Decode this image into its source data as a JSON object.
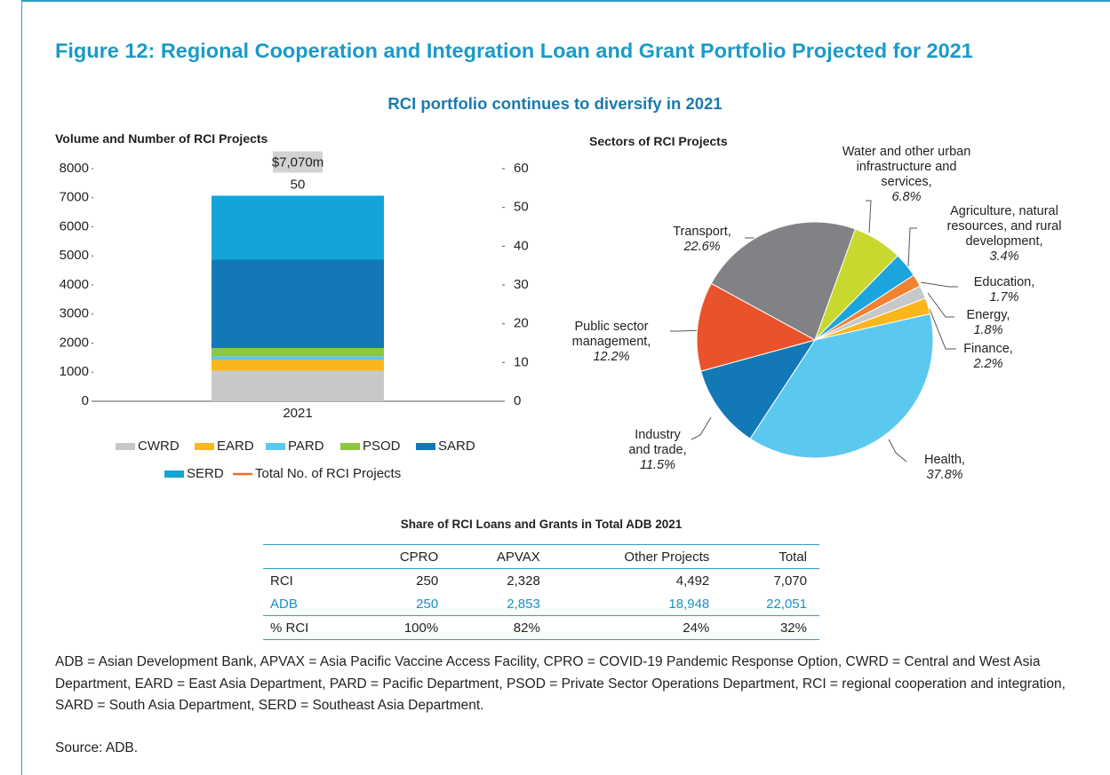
{
  "title": "Figure 12: Regional Cooperation and Integration Loan and Grant Portfolio Projected for 2021",
  "subtitle": "RCI portfolio continues to diversify in 2021",
  "chart_data": [
    {
      "type": "bar",
      "title": "Volume and Number of RCI Projects",
      "categories": [
        "2021"
      ],
      "stacked": true,
      "series": [
        {
          "name": "CWRD",
          "color": "#c7c8ca",
          "values": [
            1050
          ]
        },
        {
          "name": "EARD",
          "color": "#fbb619",
          "values": [
            370
          ]
        },
        {
          "name": "PARD",
          "color": "#5bc8ef",
          "values": [
            130
          ]
        },
        {
          "name": "PSOD",
          "color": "#8dc63f",
          "values": [
            280
          ]
        },
        {
          "name": "SARD",
          "color": "#1279b6",
          "values": [
            3040
          ]
        },
        {
          "name": "SERD",
          "color": "#13a5d8",
          "values": [
            2200
          ]
        },
        {
          "name": "Total No. of RCI Projects",
          "color": "#f26c2b",
          "axis": "y2",
          "kind": "line",
          "values": [
            50
          ]
        }
      ],
      "annotations": [
        "$7,070m"
      ],
      "ylim": [
        0,
        8000
      ],
      "yticks": [
        0,
        1000,
        2000,
        3000,
        4000,
        5000,
        6000,
        7000,
        8000
      ],
      "y2lim": [
        0,
        60
      ],
      "y2ticks": [
        0,
        10,
        20,
        30,
        40,
        50,
        60
      ]
    },
    {
      "type": "pie",
      "title": "Sectors of RCI Projects",
      "categories": [
        "Transport,",
        "Water and other urban infrastructure and services,",
        "Agriculture, natural resources, and rural development,",
        "Education,",
        "Energy,",
        "Finance,",
        "Health,",
        "Industry and trade,",
        "Public sector management,"
      ],
      "values": [
        22.6,
        6.8,
        3.4,
        1.7,
        1.8,
        2.2,
        37.8,
        11.5,
        12.2
      ],
      "value_labels": [
        "22.6%",
        "6.8%",
        "3.4%",
        "1.7%",
        "1.8%",
        "2.2%",
        "37.8%",
        "11.5%",
        "12.2%"
      ],
      "colors": [
        "#808285",
        "#c8d82f",
        "#1ba5dc",
        "#f08232",
        "#c7c8ca",
        "#fbb619",
        "#5bc8ef",
        "#1279b6",
        "#e9532b"
      ]
    }
  ],
  "table": {
    "title": "Share of RCI Loans and Grants in Total ADB 2021",
    "columns": [
      "CPRO",
      "APVAX",
      "Other Projects",
      "Total"
    ],
    "rows": [
      {
        "label": "RCI",
        "cells": [
          "250",
          "2,328",
          "4,492",
          "7,070"
        ]
      },
      {
        "label": "ADB",
        "cells": [
          "250",
          "2,853",
          "18,948",
          "22,051"
        ]
      },
      {
        "label": "% RCI",
        "cells": [
          "100%",
          "82%",
          "24%",
          "32%"
        ]
      }
    ]
  },
  "notes": "ADB = Asian Development Bank, APVAX = Asia Pacific Vaccine Access Facility, CPRO = COVID-19 Pandemic Response Option, CWRD = Central and West Asia Department, EARD = East Asia Department, PARD = Pacific Department, PSOD = Private Sector Operations Department, RCI = regional cooperation and integration, SARD = South Asia Department, SERD = Southeast Asia Department.",
  "source": "Source: ADB."
}
